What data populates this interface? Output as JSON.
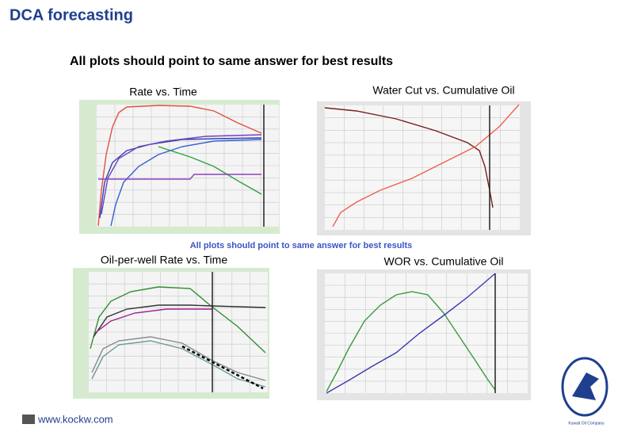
{
  "header": {
    "title": "DCA forecasting",
    "subtitle": "All plots should point to same answer for best results"
  },
  "plots": [
    {
      "title": "Rate vs. Time"
    },
    {
      "title": "Water Cut vs. Cumulative Oil"
    },
    {
      "title": "Oil-per-well Rate vs. Time"
    },
    {
      "title": "WOR vs. Cumulative Oil"
    }
  ],
  "caption": "All plots should point to same answer for best results",
  "footer": {
    "url": "www.kockw.com",
    "logo_text": "Kuwait Oil Company"
  }
}
